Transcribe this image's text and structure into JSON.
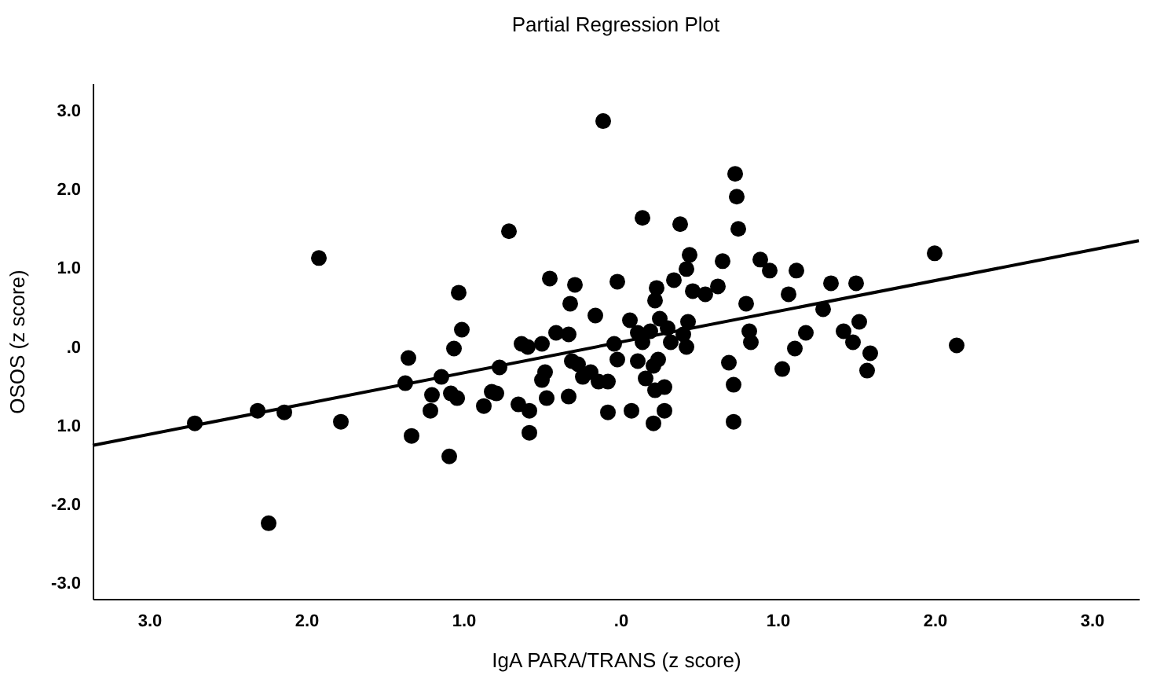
{
  "chart_data": {
    "type": "scatter",
    "title": "Partial Regression Plot",
    "xlabel": "IgA PARA/TRANS (z score)",
    "ylabel": "OSOS (z score)",
    "xlim": [
      -3.36,
      3.3
    ],
    "ylim": [
      -3.2,
      3.35
    ],
    "xticks": [
      {
        "value": -3,
        "label": "3.0"
      },
      {
        "value": -2,
        "label": "2.0"
      },
      {
        "value": -1,
        "label": "1.0"
      },
      {
        "value": 0,
        "label": ".0"
      },
      {
        "value": 1,
        "label": "1.0"
      },
      {
        "value": 2,
        "label": "2.0"
      },
      {
        "value": 3,
        "label": "3.0"
      }
    ],
    "yticks": [
      {
        "value": -3,
        "label": "-3.0"
      },
      {
        "value": -2,
        "label": "-2.0"
      },
      {
        "value": -1,
        "label": "1.0"
      },
      {
        "value": 0,
        "label": ".0"
      },
      {
        "value": 1,
        "label": "1.0"
      },
      {
        "value": 2,
        "label": "2.0"
      },
      {
        "value": 3,
        "label": "3.0"
      }
    ],
    "grid": false,
    "marker": "circle",
    "series": [
      {
        "color": "#000000",
        "x": [
          -2.71,
          -2.31,
          -2.14,
          -1.92,
          -1.78,
          -2.24,
          -1.35,
          -1.37,
          -1.33,
          -1.14,
          -1.2,
          -1.21,
          -1.08,
          -1.04,
          -1.09,
          -1.06,
          -1.03,
          -1.01,
          -0.87,
          -0.82,
          -0.79,
          -0.77,
          -0.71,
          -0.65,
          -0.58,
          -0.58,
          -0.63,
          -0.59,
          -0.5,
          -0.5,
          -0.48,
          -0.47,
          -0.45,
          -0.41,
          -0.33,
          -0.32,
          -0.29,
          -0.33,
          -0.31,
          -0.27,
          -0.24,
          -0.19,
          -0.16,
          -0.14,
          -0.11,
          -0.08,
          -0.04,
          -0.02,
          -0.02,
          0.73,
          0.74,
          0.75,
          0.14,
          0.38,
          2.0,
          2.14,
          0.44,
          0.42,
          0.34,
          0.65,
          0.89,
          0.95,
          1.12,
          1.34,
          1.5,
          0.23,
          0.22,
          0.46,
          0.54,
          0.62,
          1.07,
          0.8,
          1.29,
          0.06,
          0.25,
          0.43,
          0.11,
          0.19,
          0.3,
          0.4,
          0.14,
          0.32,
          0.42,
          0.82,
          0.83,
          1.18,
          1.42,
          1.52,
          1.48,
          1.59,
          1.11,
          1.57,
          1.03,
          0.11,
          0.24,
          0.21,
          0.16,
          0.28,
          0.22,
          0.69,
          0.72,
          -0.08,
          0.07,
          0.21,
          0.28,
          0.72
        ],
        "values": [
          -0.97,
          -0.81,
          -0.83,
          1.13,
          -0.95,
          -2.24,
          -0.14,
          -0.46,
          -1.13,
          -0.38,
          -0.61,
          -0.81,
          -0.59,
          -0.65,
          -1.39,
          -0.02,
          0.69,
          0.22,
          -0.75,
          -0.57,
          -0.59,
          -0.26,
          1.47,
          -0.73,
          -0.81,
          -1.09,
          0.04,
          0.0,
          0.04,
          -0.42,
          -0.32,
          -0.65,
          0.87,
          0.18,
          0.16,
          0.55,
          0.79,
          -0.63,
          -0.18,
          -0.22,
          -0.38,
          -0.32,
          0.4,
          -0.44,
          2.87,
          -0.83,
          0.04,
          0.83,
          -0.16,
          2.2,
          1.91,
          1.5,
          1.64,
          1.56,
          1.19,
          0.02,
          1.17,
          0.99,
          0.85,
          1.09,
          1.11,
          0.97,
          0.97,
          0.81,
          0.81,
          0.75,
          0.59,
          0.71,
          0.67,
          0.77,
          0.67,
          0.55,
          0.48,
          0.34,
          0.36,
          0.32,
          0.18,
          0.2,
          0.24,
          0.16,
          0.06,
          0.06,
          0.0,
          0.2,
          0.06,
          0.18,
          0.2,
          0.32,
          0.06,
          -0.08,
          -0.02,
          -0.3,
          -0.28,
          -0.18,
          -0.16,
          -0.24,
          -0.4,
          -0.51,
          -0.55,
          -0.2,
          -0.48,
          -0.44,
          -0.81,
          -0.97,
          -0.81,
          -0.95
        ]
      },
      {
        "type": "line",
        "marker": "none",
        "line_style": "solid",
        "color": "#000000",
        "x": [
          -3.36,
          3.3
        ],
        "values": [
          -1.25,
          1.35
        ]
      }
    ]
  }
}
